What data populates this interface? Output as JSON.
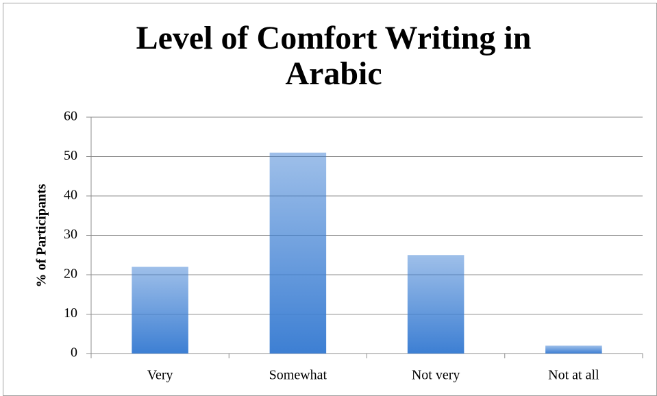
{
  "chart_data": {
    "type": "bar",
    "title": "Level of Comfort Writing in Arabic",
    "y_label": "% of Participants",
    "categories": [
      "Very",
      "Somewhat",
      "Not very",
      "Not at all"
    ],
    "values": [
      22,
      51,
      25,
      2
    ],
    "color": "#3d7fd3",
    "ylim": [
      0,
      60
    ],
    "yticks": [
      0,
      10,
      20,
      30,
      40,
      50,
      60
    ],
    "grid": true
  }
}
